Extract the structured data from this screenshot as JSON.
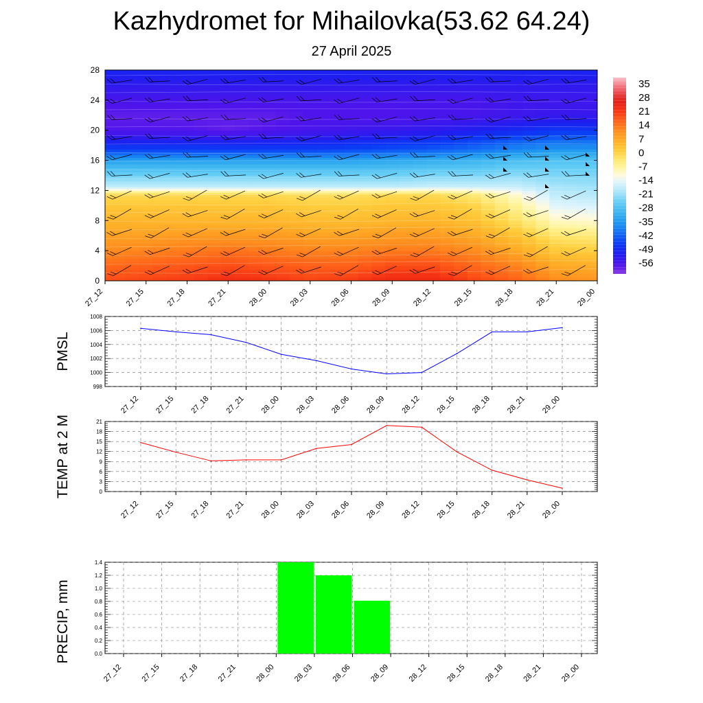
{
  "page": {
    "title": "Kazhydromet for Mihailovka(53.62 64.24)",
    "subtitle": "27 April 2025"
  },
  "chart_data": [
    {
      "type": "heatmap",
      "id": "cross-section",
      "title": "",
      "xlabel": "",
      "ylabel": "",
      "x_categories": [
        "27_12",
        "27_15",
        "27_18",
        "27_21",
        "28_00",
        "28_03",
        "28_06",
        "28_09",
        "28_12",
        "28_15",
        "28_18",
        "28_21",
        "29_00"
      ],
      "y_ticks": [
        0,
        4,
        8,
        12,
        16,
        20,
        24,
        28
      ],
      "ylim": [
        0,
        28
      ],
      "colorbar": {
        "labels": [
          "35",
          "28",
          "21",
          "14",
          "7",
          "0",
          "-7",
          "-14",
          "-21",
          "-28",
          "-35",
          "-42",
          "-49",
          "-56"
        ],
        "range": [
          -60,
          36
        ]
      },
      "z_profile_note_levels": [
        0,
        2,
        4,
        6,
        8,
        10,
        11.5,
        12.5,
        14,
        16,
        17.5,
        20,
        22,
        24,
        26,
        28
      ],
      "z_values": [
        [
          17,
          18,
          19,
          21,
          20,
          18,
          19,
          22,
          22,
          18,
          15,
          10,
          9
        ],
        [
          14,
          15,
          16,
          17,
          16,
          15,
          15,
          17,
          17,
          14,
          11,
          6,
          5
        ],
        [
          10,
          11,
          12,
          13,
          12,
          11,
          11,
          12,
          12,
          10,
          6,
          1,
          0
        ],
        [
          7,
          7,
          8,
          8,
          8,
          7,
          7,
          8,
          8,
          6,
          2,
          -4,
          -5
        ],
        [
          4,
          4,
          4,
          4,
          4,
          3,
          3,
          4,
          4,
          2,
          -3,
          -10,
          -11
        ],
        [
          1,
          1,
          1,
          1,
          1,
          0,
          0,
          1,
          1,
          -1,
          -7,
          -15,
          -16
        ],
        [
          -2,
          -2,
          -2,
          -2,
          -2,
          -3,
          -3,
          -2,
          -2,
          -5,
          -11,
          -18,
          -19
        ],
        [
          -18,
          -18,
          -18,
          -18,
          -18,
          -18,
          -18,
          -18,
          -17,
          -17,
          -17,
          -20,
          -21
        ],
        [
          -24,
          -24,
          -24,
          -24,
          -24,
          -24,
          -24,
          -24,
          -23,
          -23,
          -22,
          -23,
          -23
        ],
        [
          -33,
          -33,
          -33,
          -33,
          -33,
          -33,
          -33,
          -32,
          -31,
          -30,
          -28,
          -27,
          -27
        ],
        [
          -45,
          -45,
          -45,
          -45,
          -45,
          -45,
          -44,
          -43,
          -42,
          -40,
          -37,
          -35,
          -35
        ],
        [
          -56,
          -56,
          -56,
          -57,
          -56,
          -55,
          -54,
          -53,
          -52,
          -50,
          -48,
          -46,
          -46
        ],
        [
          -57,
          -57,
          -57,
          -57,
          -57,
          -56,
          -56,
          -56,
          -55,
          -55,
          -54,
          -53,
          -53
        ],
        [
          -55,
          -55,
          -55,
          -55,
          -55,
          -55,
          -55,
          -55,
          -55,
          -55,
          -54,
          -54,
          -54
        ],
        [
          -52,
          -52,
          -52,
          -52,
          -52,
          -52,
          -52,
          -52,
          -52,
          -52,
          -52,
          -52,
          -52
        ],
        [
          -49,
          -49,
          -49,
          -49,
          -49,
          -49,
          -49,
          -49,
          -49,
          -49,
          -49,
          -49,
          -49
        ]
      ],
      "wind_barbs": true
    },
    {
      "type": "line",
      "id": "pmsl",
      "title": "",
      "xlabel": "",
      "ylabel": "PMSL",
      "categories": [
        "27_12",
        "27_15",
        "27_18",
        "27_21",
        "28_00",
        "28_03",
        "28_06",
        "28_09",
        "28_12",
        "28_15",
        "28_18",
        "28_21",
        "29_00"
      ],
      "y_ticks": [
        998,
        1000,
        1002,
        1004,
        1006,
        1008
      ],
      "ylim": [
        998,
        1008
      ],
      "grid": true,
      "series": [
        {
          "color": "#0000ff",
          "values": [
            1006.3,
            1005.8,
            1005.4,
            1004.3,
            1002.6,
            1001.7,
            1000.5,
            999.8,
            1000.0,
            1002.7,
            1005.8,
            1005.8,
            1006.4
          ]
        }
      ]
    },
    {
      "type": "line",
      "id": "temp2m",
      "title": "",
      "xlabel": "",
      "ylabel": "TEMP at 2 M",
      "categories": [
        "27_12",
        "27_15",
        "27_18",
        "27_21",
        "28_00",
        "28_03",
        "28_06",
        "28_09",
        "28_12",
        "28_15",
        "28_18",
        "28_21",
        "29_00"
      ],
      "y_ticks": [
        0,
        3,
        6,
        9,
        12,
        15,
        18,
        21
      ],
      "ylim": [
        0,
        21
      ],
      "grid": true,
      "series": [
        {
          "color": "#ff0000",
          "values": [
            14.7,
            11.8,
            9.2,
            9.5,
            9.5,
            12.9,
            14.1,
            19.8,
            19.3,
            11.9,
            6.4,
            3.5,
            1.0
          ]
        }
      ]
    },
    {
      "type": "bar",
      "id": "precip",
      "title": "",
      "xlabel": "",
      "ylabel": "PRECIP, mm",
      "categories": [
        "27_12",
        "27_15",
        "27_18",
        "27_21",
        "28_00",
        "28_03",
        "28_06",
        "28_09",
        "28_12",
        "28_15",
        "28_18",
        "28_21",
        "29_00"
      ],
      "y_ticks": [
        "0.0",
        "0.2",
        "0.4",
        "0.6",
        "0.8",
        "1.0",
        "1.2",
        "1.4"
      ],
      "ylim": [
        0,
        1.4
      ],
      "grid": true,
      "series": [
        {
          "color": "#00ff00",
          "values": [
            0,
            0,
            0,
            0,
            0,
            1.4,
            1.2,
            0.81,
            0,
            0,
            0,
            0,
            0
          ]
        }
      ]
    }
  ]
}
